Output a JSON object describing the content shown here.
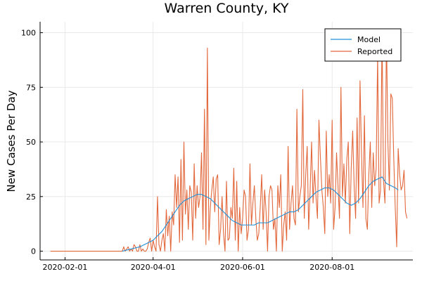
{
  "chart_data": {
    "type": "line",
    "title": "Warren County, KY",
    "xlabel": "",
    "ylabel": "New Cases Per Day",
    "x_axis": {
      "type": "date",
      "range": [
        "2020-01-15",
        "2020-09-25"
      ],
      "ticks": [
        "2020-02-01",
        "2020-04-01",
        "2020-06-01",
        "2020-08-01"
      ]
    },
    "y_axis": {
      "range": [
        -4,
        105
      ],
      "ticks": [
        0,
        25,
        50,
        75,
        100
      ]
    },
    "grid": true,
    "legend": {
      "position": "top-right"
    },
    "series": [
      {
        "name": "Model",
        "color": "#1f8fd8",
        "points": [
          [
            "2020-03-11",
            0
          ],
          [
            "2020-03-14",
            0.5
          ],
          [
            "2020-03-17",
            1
          ],
          [
            "2020-03-20",
            1.5
          ],
          [
            "2020-03-23",
            2
          ],
          [
            "2020-03-26",
            3
          ],
          [
            "2020-03-29",
            4
          ],
          [
            "2020-04-01",
            5
          ],
          [
            "2020-04-04",
            7
          ],
          [
            "2020-04-07",
            9
          ],
          [
            "2020-04-10",
            12
          ],
          [
            "2020-04-13",
            15
          ],
          [
            "2020-04-16",
            18
          ],
          [
            "2020-04-19",
            21
          ],
          [
            "2020-04-22",
            23
          ],
          [
            "2020-04-25",
            24
          ],
          [
            "2020-04-28",
            25
          ],
          [
            "2020-05-01",
            26
          ],
          [
            "2020-05-04",
            26
          ],
          [
            "2020-05-07",
            25
          ],
          [
            "2020-05-10",
            24
          ],
          [
            "2020-05-13",
            22
          ],
          [
            "2020-05-16",
            20
          ],
          [
            "2020-05-19",
            18
          ],
          [
            "2020-05-22",
            16
          ],
          [
            "2020-05-25",
            14
          ],
          [
            "2020-05-28",
            13
          ],
          [
            "2020-05-31",
            12
          ],
          [
            "2020-06-03",
            12
          ],
          [
            "2020-06-06",
            12
          ],
          [
            "2020-06-09",
            12
          ],
          [
            "2020-06-12",
            13
          ],
          [
            "2020-06-15",
            13
          ],
          [
            "2020-06-18",
            13
          ],
          [
            "2020-06-21",
            14
          ],
          [
            "2020-06-24",
            15
          ],
          [
            "2020-06-27",
            16
          ],
          [
            "2020-06-30",
            17
          ],
          [
            "2020-07-03",
            18
          ],
          [
            "2020-07-06",
            18
          ],
          [
            "2020-07-09",
            19
          ],
          [
            "2020-07-12",
            21
          ],
          [
            "2020-07-15",
            23
          ],
          [
            "2020-07-18",
            25
          ],
          [
            "2020-07-21",
            27
          ],
          [
            "2020-07-24",
            28
          ],
          [
            "2020-07-27",
            29
          ],
          [
            "2020-07-30",
            29
          ],
          [
            "2020-08-02",
            28
          ],
          [
            "2020-08-05",
            26
          ],
          [
            "2020-08-08",
            24
          ],
          [
            "2020-08-11",
            22
          ],
          [
            "2020-08-14",
            21
          ],
          [
            "2020-08-17",
            22
          ],
          [
            "2020-08-20",
            24
          ],
          [
            "2020-08-23",
            27
          ],
          [
            "2020-08-26",
            30
          ],
          [
            "2020-08-29",
            32
          ],
          [
            "2020-09-01",
            33
          ],
          [
            "2020-09-04",
            34
          ],
          [
            "2020-09-07",
            31
          ],
          [
            "2020-09-10",
            30
          ],
          [
            "2020-09-13",
            29
          ],
          [
            "2020-09-15",
            28
          ]
        ]
      },
      {
        "name": "Reported",
        "color": "#e2683c",
        "start_date": "2020-01-22",
        "values": [
          0,
          0,
          0,
          0,
          0,
          0,
          0,
          0,
          0,
          0,
          0,
          0,
          0,
          0,
          0,
          0,
          0,
          0,
          0,
          0,
          0,
          0,
          0,
          0,
          0,
          0,
          0,
          0,
          0,
          0,
          0,
          0,
          0,
          0,
          0,
          0,
          0,
          0,
          0,
          0,
          0,
          0,
          0,
          0,
          0,
          0,
          0,
          0,
          0,
          0,
          2,
          0,
          1,
          2,
          0,
          1,
          0,
          3,
          2,
          0,
          0,
          3,
          0,
          1,
          0,
          0,
          1,
          4,
          6,
          0,
          5,
          2,
          0,
          25,
          3,
          0,
          5,
          8,
          0,
          19,
          7,
          16,
          0,
          18,
          12,
          35,
          20,
          34,
          4,
          42,
          5,
          50,
          17,
          28,
          10,
          30,
          27,
          5,
          40,
          15,
          30,
          20,
          25,
          45,
          10,
          65,
          3,
          93,
          5,
          20,
          28,
          34,
          18,
          33,
          35,
          3,
          10,
          25,
          8,
          0,
          32,
          5,
          6,
          20,
          15,
          38,
          5,
          32,
          0,
          20,
          8,
          15,
          28,
          25,
          5,
          10,
          40,
          12,
          22,
          30,
          15,
          5,
          8,
          20,
          35,
          10,
          28,
          18,
          0,
          25,
          30,
          28,
          10,
          15,
          0,
          30,
          20,
          35,
          0,
          12,
          18,
          5,
          48,
          10,
          22,
          30,
          15,
          12,
          65,
          18,
          25,
          30,
          74,
          15,
          35,
          48,
          10,
          28,
          50,
          22,
          37,
          25,
          15,
          60,
          43,
          28,
          20,
          8,
          55,
          25,
          35,
          22,
          60,
          10,
          20,
          45,
          30,
          15,
          75,
          25,
          40,
          22,
          42,
          50,
          8,
          38,
          55,
          30,
          15,
          61,
          22,
          78,
          45,
          20,
          62,
          15,
          10,
          35,
          50,
          20,
          45,
          30,
          38,
          90,
          22,
          28,
          100,
          32,
          22,
          100,
          50,
          28,
          72,
          70,
          42,
          20,
          2,
          47,
          35,
          28,
          30,
          37,
          18,
          15
        ]
      }
    ]
  }
}
